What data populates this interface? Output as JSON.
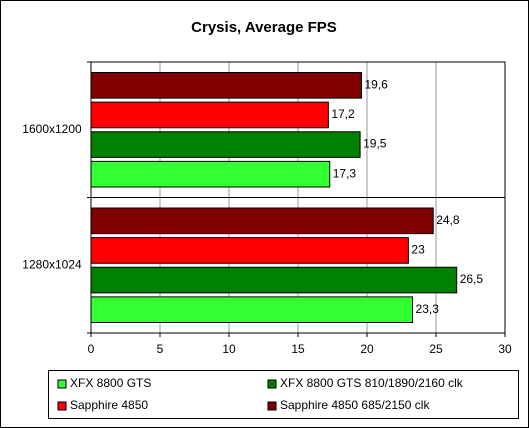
{
  "chart_data": {
    "type": "hbar",
    "title": "Crysis, Average FPS",
    "categories": [
      "1600x1200",
      "1280x1024"
    ],
    "series": [
      {
        "name": "XFX 8800 GTS",
        "color": "#33ff33",
        "values": [
          17.3,
          23.3
        ],
        "value_labels": [
          "17,3",
          "23,3"
        ]
      },
      {
        "name": "XFX 8800 GTS 810/1890/2160 clk",
        "color": "#008000",
        "values": [
          19.5,
          26.5
        ],
        "value_labels": [
          "19,5",
          "26,5"
        ]
      },
      {
        "name": "Sapphire 4850",
        "color": "#ff0000",
        "values": [
          17.2,
          23
        ],
        "value_labels": [
          "17,2",
          "23"
        ]
      },
      {
        "name": "Sapphire 4850 685/2150 clk",
        "color": "#800000",
        "values": [
          19.6,
          24.8
        ],
        "value_labels": [
          "19,6",
          "24,8"
        ]
      }
    ],
    "xlim": [
      0,
      30
    ],
    "xticks": [
      0,
      5,
      10,
      15,
      20,
      25,
      30
    ],
    "grid": true,
    "legend": "bottom"
  }
}
